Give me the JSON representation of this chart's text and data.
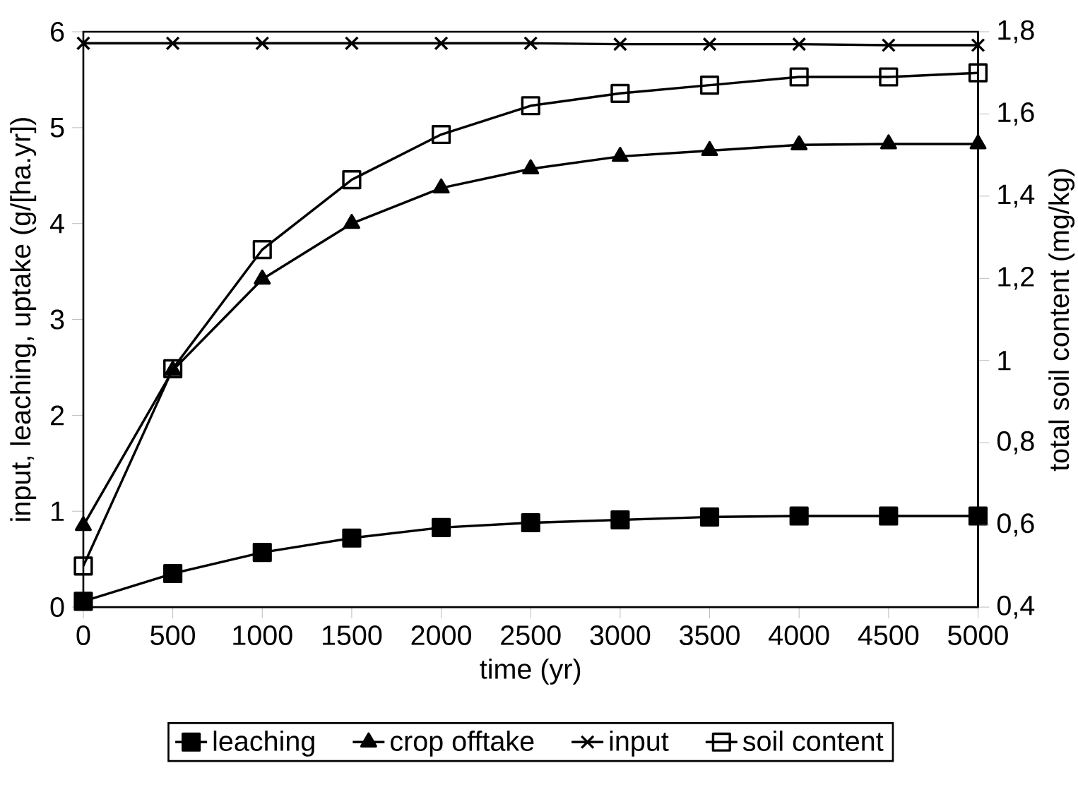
{
  "chart_data": {
    "type": "line",
    "xlabel": "time (yr)",
    "ylabel": "input, leaching, uptake (g/[ha.yr])",
    "y2label": "total soil content (mg/kg)",
    "x": [
      0,
      500,
      1000,
      1500,
      2000,
      2500,
      3000,
      3500,
      4000,
      4500,
      5000
    ],
    "xlim": [
      0,
      5000
    ],
    "xticks": [
      0,
      500,
      1000,
      1500,
      2000,
      2500,
      3000,
      3500,
      4000,
      4500,
      5000
    ],
    "ylim": [
      0,
      6
    ],
    "yticks": [
      0,
      1,
      2,
      3,
      4,
      5,
      6
    ],
    "y2lim": [
      0.4,
      1.8
    ],
    "y2ticks": [
      {
        "value": 0.4,
        "label": "0,4"
      },
      {
        "value": 0.6,
        "label": "0,6"
      },
      {
        "value": 0.8,
        "label": "0,8"
      },
      1,
      {
        "value": 1.2,
        "label": "1,2"
      },
      {
        "value": 1.4,
        "label": "1,4"
      },
      {
        "value": 1.6,
        "label": "1,6"
      },
      {
        "value": 1.8,
        "label": "1,8"
      }
    ],
    "grid": false,
    "legend": "bottom",
    "series": [
      {
        "name": "leaching",
        "color": "#000000",
        "marker": "square",
        "values": [
          0.06,
          0.35,
          0.57,
          0.72,
          0.83,
          0.88,
          0.91,
          0.94,
          0.95,
          0.95,
          0.95
        ]
      },
      {
        "name": "crop offtake",
        "color": "#000000",
        "marker": "triangle",
        "values": [
          0.85,
          2.47,
          3.42,
          4.0,
          4.37,
          4.57,
          4.7,
          4.76,
          4.82,
          4.83,
          4.83
        ]
      },
      {
        "name": "input",
        "color": "#000000",
        "marker": "cross",
        "values": [
          5.88,
          5.88,
          5.88,
          5.88,
          5.88,
          5.88,
          5.87,
          5.87,
          5.87,
          5.86,
          5.86
        ]
      },
      {
        "name": "soil content",
        "color": "#000000",
        "marker": "square",
        "axis": "y2",
        "values": [
          0.5,
          0.98,
          1.27,
          1.44,
          1.55,
          1.62,
          1.65,
          1.67,
          1.69,
          1.69,
          1.7
        ]
      }
    ]
  }
}
